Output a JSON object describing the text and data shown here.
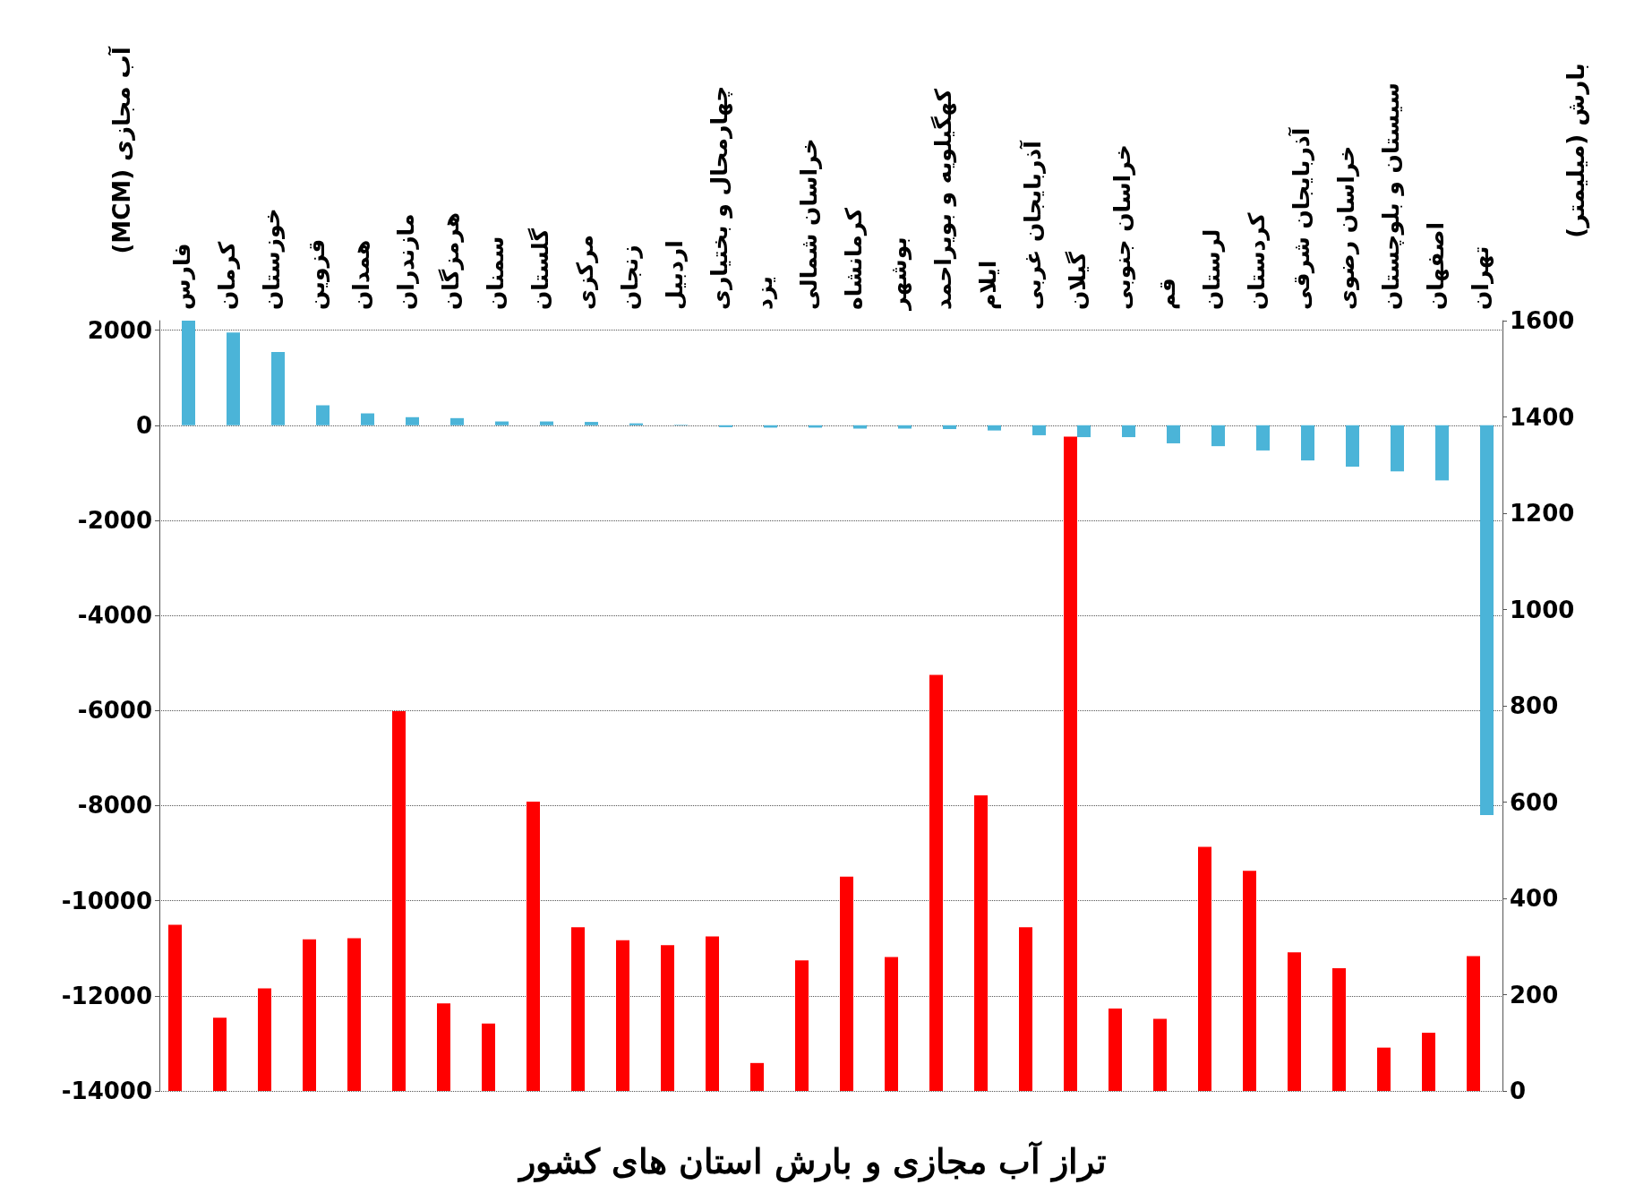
{
  "chart_data": {
    "type": "bar",
    "title": "تراز آب مجازی و بارش استان های کشور",
    "ylabel": "آب مجازی (MCM)",
    "y2label": "بارش (میلیمتر)",
    "categories": [
      "فارس",
      "کرمان",
      "خوزستان",
      "قزوین",
      "همدان",
      "مازندران",
      "هرمزگان",
      "سمنان",
      "گلستان",
      "مرکزی",
      "زنجان",
      "اردبیل",
      "چهارمحال و بختیاری",
      "یزد",
      "خراسان شمالی",
      "کرمانشاه",
      "بوشهر",
      "کهگیلویه و بویراحمد",
      "ایلام",
      "آذربایجان غربی",
      "گیلان",
      "خراسان جنوبی",
      "قم",
      "لرستان",
      "کردستان",
      "آذربایجان شرقی",
      "خراسان رضوی",
      "سیستان و بلوچستان",
      "اصفهان",
      "تهران"
    ],
    "series": [
      {
        "color": "#ff0000",
        "axis": "y2",
        "values": [
          345,
          152,
          213,
          315,
          317,
          789,
          182,
          140,
          601,
          340,
          313,
          303,
          321,
          58,
          271,
          445,
          278,
          864,
          614,
          340,
          1359,
          171,
          150,
          507,
          457,
          288,
          255,
          90,
          121,
          280
        ]
      },
      {
        "color": "#4bb4d8",
        "values": [
          2200,
          1950,
          1540,
          420,
          250,
          170,
          150,
          80,
          80,
          70,
          40,
          10,
          -40,
          -50,
          -50,
          -70,
          -70,
          -80,
          -110,
          -210,
          -250,
          -250,
          -380,
          -440,
          -530,
          -740,
          -870,
          -970,
          -1160,
          -8200
        ]
      }
    ],
    "ylim": [
      -14000,
      2200
    ],
    "yticks": [
      -14000,
      -12000,
      -10000,
      -8000,
      -6000,
      -4000,
      -2000,
      0,
      2000
    ],
    "y2lim": [
      0,
      1600
    ],
    "y2ticks": [
      0,
      200,
      400,
      600,
      800,
      1000,
      1200,
      1400,
      1600
    ],
    "grid": "y"
  }
}
